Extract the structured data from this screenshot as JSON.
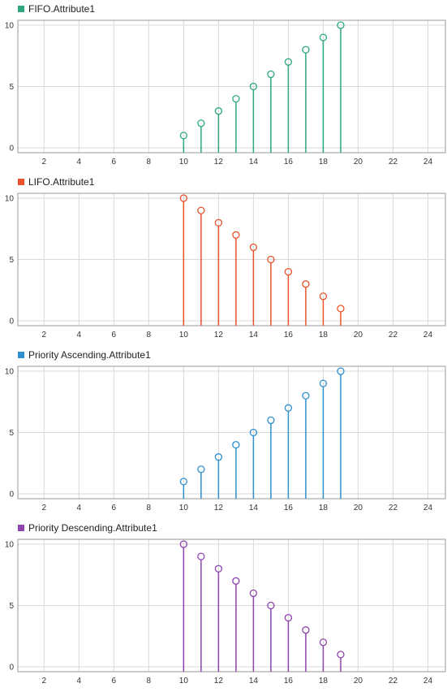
{
  "chart_data": [
    {
      "type": "stem",
      "legend": "FIFO.Attribute1",
      "color": "#2ca87f",
      "x": [
        10,
        11,
        12,
        13,
        14,
        15,
        16,
        17,
        18,
        19
      ],
      "y": [
        1,
        2,
        3,
        4,
        5,
        6,
        7,
        8,
        9,
        10
      ],
      "xticks": [
        2,
        4,
        6,
        8,
        10,
        12,
        14,
        16,
        18,
        20,
        22,
        24
      ],
      "yticks": [
        0,
        5,
        10
      ],
      "xlim": [
        0.5,
        25
      ],
      "ylim": [
        -0.4,
        10.4
      ],
      "grid": true,
      "legend_position": "top-left"
    },
    {
      "type": "stem",
      "legend": "LIFO.Attribute1",
      "color": "#e8532c",
      "x": [
        10,
        11,
        12,
        13,
        14,
        15,
        16,
        17,
        18,
        19
      ],
      "y": [
        10,
        9,
        8,
        7,
        6,
        5,
        4,
        3,
        2,
        1
      ],
      "xticks": [
        2,
        4,
        6,
        8,
        10,
        12,
        14,
        16,
        18,
        20,
        22,
        24
      ],
      "yticks": [
        0,
        5,
        10
      ],
      "xlim": [
        0.5,
        25
      ],
      "ylim": [
        -0.4,
        10.4
      ],
      "grid": true,
      "legend_position": "top-left"
    },
    {
      "type": "stem",
      "legend": "Priority Ascending.Attribute1",
      "color": "#2f8fd0",
      "x": [
        10,
        11,
        12,
        13,
        14,
        15,
        16,
        17,
        18,
        19
      ],
      "y": [
        1,
        2,
        3,
        4,
        5,
        6,
        7,
        8,
        9,
        10
      ],
      "xticks": [
        2,
        4,
        6,
        8,
        10,
        12,
        14,
        16,
        18,
        20,
        22,
        24
      ],
      "yticks": [
        0,
        5,
        10
      ],
      "xlim": [
        0.5,
        25
      ],
      "ylim": [
        -0.4,
        10.4
      ],
      "grid": true,
      "legend_position": "top-left"
    },
    {
      "type": "stem",
      "legend": "Priority Descending.Attribute1",
      "color": "#8e44ad",
      "x": [
        10,
        11,
        12,
        13,
        14,
        15,
        16,
        17,
        18,
        19
      ],
      "y": [
        10,
        9,
        8,
        7,
        6,
        5,
        4,
        3,
        2,
        1
      ],
      "xticks": [
        2,
        4,
        6,
        8,
        10,
        12,
        14,
        16,
        18,
        20,
        22,
        24
      ],
      "yticks": [
        0,
        5,
        10
      ],
      "xlim": [
        0.5,
        25
      ],
      "ylim": [
        -0.4,
        10.4
      ],
      "grid": true,
      "legend_position": "top-left"
    }
  ]
}
